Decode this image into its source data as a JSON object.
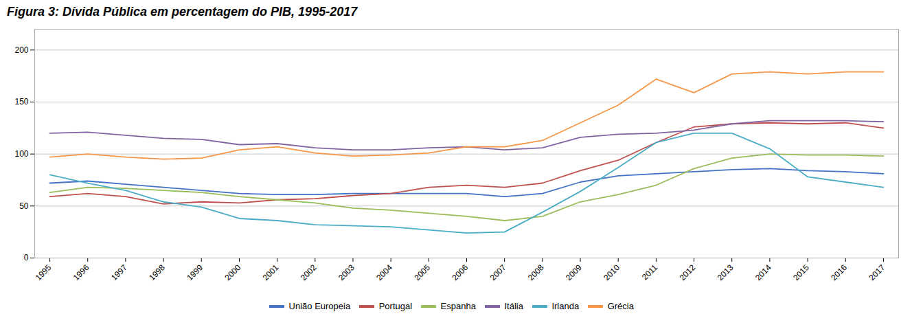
{
  "chart_data": {
    "type": "line",
    "title": "Figura 3: Dívida Pública em percentagem do PIB, 1995-2017",
    "x": [
      1995,
      1996,
      1997,
      1998,
      1999,
      2000,
      2001,
      2002,
      2003,
      2004,
      2005,
      2006,
      2007,
      2008,
      2009,
      2010,
      2011,
      2012,
      2013,
      2014,
      2015,
      2016,
      2017
    ],
    "series": [
      {
        "name": "União Europeia",
        "color": "#4472C4",
        "values": [
          72,
          74,
          71,
          68,
          65,
          62,
          61,
          61,
          62,
          62,
          62,
          62,
          59,
          62,
          73,
          79,
          81,
          83,
          85,
          86,
          84,
          83,
          81
        ]
      },
      {
        "name": "Portugal",
        "color": "#C0504D",
        "values": [
          59,
          62,
          59,
          52,
          54,
          53,
          56,
          57,
          60,
          62,
          68,
          70,
          68,
          72,
          84,
          94,
          111,
          126,
          129,
          130,
          129,
          130,
          125
        ]
      },
      {
        "name": "Espanha",
        "color": "#9BBB59",
        "values": [
          63,
          68,
          67,
          65,
          63,
          59,
          56,
          53,
          48,
          46,
          43,
          40,
          36,
          40,
          54,
          61,
          70,
          86,
          96,
          100,
          99,
          99,
          98
        ]
      },
      {
        "name": "Itália",
        "color": "#8064A2",
        "values": [
          120,
          121,
          118,
          115,
          114,
          109,
          110,
          106,
          104,
          104,
          106,
          107,
          104,
          106,
          116,
          119,
          120,
          123,
          129,
          132,
          132,
          132,
          131
        ]
      },
      {
        "name": "Irlanda",
        "color": "#4BACC6",
        "values": [
          80,
          72,
          65,
          54,
          49,
          38,
          36,
          32,
          31,
          30,
          27,
          24,
          25,
          44,
          64,
          87,
          111,
          120,
          120,
          105,
          78,
          73,
          68
        ]
      },
      {
        "name": "Grécia",
        "color": "#F79646",
        "values": [
          97,
          100,
          97,
          95,
          96,
          104,
          107,
          101,
          98,
          99,
          101,
          107,
          107,
          113,
          130,
          147,
          172,
          159,
          177,
          179,
          177,
          179,
          179
        ]
      }
    ],
    "xlim": [
      1994.6,
      2017.4
    ],
    "xticks": [
      1995,
      1996,
      1997,
      1998,
      1999,
      2000,
      2001,
      2002,
      2003,
      2004,
      2005,
      2006,
      2007,
      2008,
      2009,
      2010,
      2011,
      2012,
      2013,
      2014,
      2015,
      2016,
      2017
    ],
    "ylim": [
      0,
      220
    ],
    "yticks": [
      0,
      50,
      100,
      150,
      200
    ],
    "grid": true,
    "legend": "bottom"
  }
}
